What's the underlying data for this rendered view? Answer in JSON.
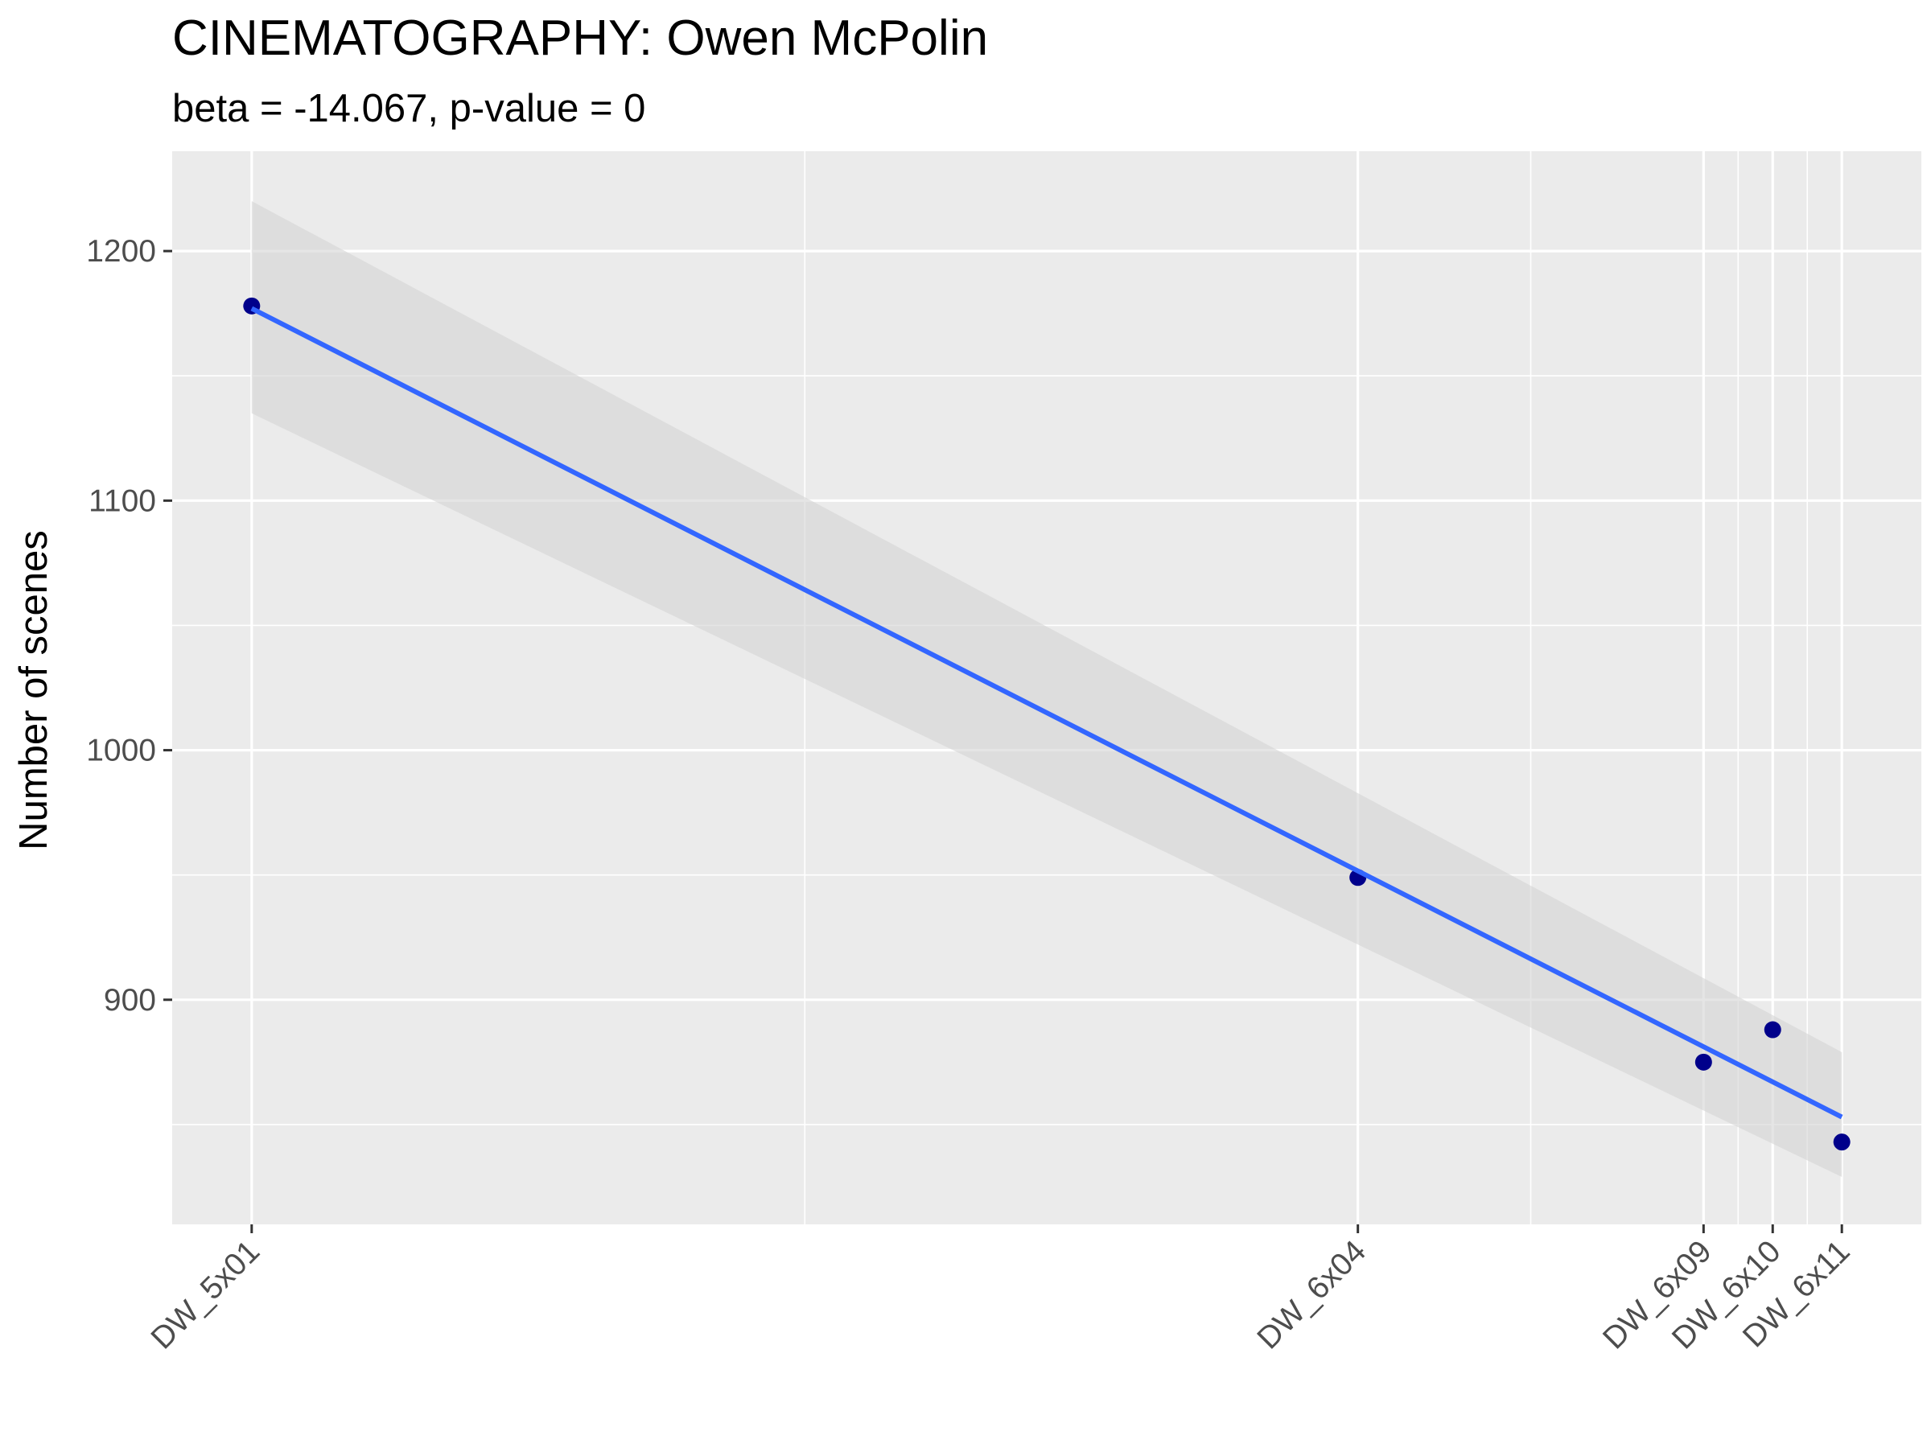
{
  "chart_data": {
    "type": "scatter",
    "title": "CINEMATOGRAPHY: Owen McPolin",
    "subtitle": "beta = -14.067, p-value = 0",
    "xlabel": "",
    "ylabel": "Number of scenes",
    "x_categories": [
      {
        "label": "DW_5x01",
        "index": 1
      },
      {
        "label": "DW_6x04",
        "index": 17
      },
      {
        "label": "DW_6x09",
        "index": 22
      },
      {
        "label": "DW_6x10",
        "index": 23
      },
      {
        "label": "DW_6x11",
        "index": 24
      }
    ],
    "xlim": [
      -0.15,
      25.15
    ],
    "ylim": [
      810,
      1240
    ],
    "yticks": [
      900,
      1000,
      1100,
      1200
    ],
    "grid": true,
    "legend": "none",
    "series": [
      {
        "points": [
          {
            "x": 1,
            "y": 1178
          },
          {
            "x": 17,
            "y": 949
          },
          {
            "x": 22,
            "y": 875
          },
          {
            "x": 23,
            "y": 888
          },
          {
            "x": 24,
            "y": 843
          }
        ]
      }
    ],
    "fit": {
      "x": [
        1,
        24
      ],
      "y": [
        1177,
        853
      ],
      "ci_lower": [
        1135,
        829
      ],
      "ci_upper": [
        1220,
        879
      ]
    },
    "colors": {
      "panel_background": "#ebebeb",
      "grid": "#ffffff",
      "points": "#00008b",
      "fit_line": "#3366ff",
      "ci_band": "#d4d4d4"
    }
  }
}
